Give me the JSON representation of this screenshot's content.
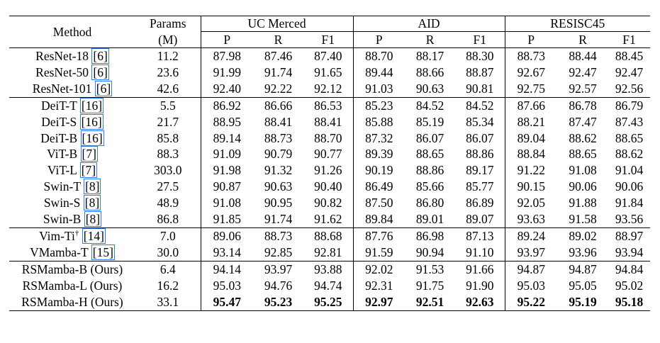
{
  "header": {
    "method": "Method",
    "params": "Params",
    "params_unit": "(M)",
    "datasets": [
      "UC Merced",
      "AID",
      "RESISC45"
    ],
    "metrics": [
      "P",
      "R",
      "F1"
    ]
  },
  "groups": [
    {
      "rows": [
        {
          "name": "ResNet-18",
          "cite": "6",
          "params": "11.2",
          "values": [
            "87.98",
            "87.46",
            "87.40",
            "88.70",
            "88.17",
            "88.30",
            "88.73",
            "88.44",
            "88.45"
          ]
        },
        {
          "name": "ResNet-50",
          "cite": "6",
          "params": "23.6",
          "values": [
            "91.99",
            "91.74",
            "91.65",
            "89.44",
            "88.66",
            "88.87",
            "92.67",
            "92.47",
            "92.47"
          ]
        },
        {
          "name": "ResNet-101",
          "cite": "6",
          "params": "42.6",
          "values": [
            "92.40",
            "92.22",
            "92.12",
            "91.03",
            "90.63",
            "90.81",
            "92.75",
            "92.57",
            "92.56"
          ]
        }
      ]
    },
    {
      "rows": [
        {
          "name": "DeiT-T",
          "cite": "16",
          "params": "5.5",
          "values": [
            "86.92",
            "86.66",
            "86.53",
            "85.23",
            "84.52",
            "84.52",
            "87.66",
            "86.78",
            "86.79"
          ]
        },
        {
          "name": "DeiT-S",
          "cite": "16",
          "params": "21.7",
          "values": [
            "88.95",
            "88.41",
            "88.41",
            "85.88",
            "85.19",
            "85.34",
            "88.21",
            "87.47",
            "87.43"
          ]
        },
        {
          "name": "DeiT-B",
          "cite": "16",
          "params": "85.8",
          "values": [
            "89.14",
            "88.73",
            "88.70",
            "87.32",
            "86.07",
            "86.07",
            "89.04",
            "88.62",
            "88.65"
          ]
        },
        {
          "name": "ViT-B",
          "cite": "7",
          "params": "88.3",
          "values": [
            "91.09",
            "90.79",
            "90.77",
            "89.39",
            "88.65",
            "88.86",
            "88.84",
            "88.65",
            "88.62"
          ]
        },
        {
          "name": "ViT-L",
          "cite": "7",
          "params": "303.0",
          "values": [
            "91.98",
            "91.32",
            "91.26",
            "90.19",
            "88.86",
            "89.17",
            "91.22",
            "91.08",
            "91.04"
          ]
        },
        {
          "name": "Swin-T",
          "cite": "8",
          "params": "27.5",
          "values": [
            "90.87",
            "90.63",
            "90.40",
            "86.49",
            "85.66",
            "85.77",
            "90.15",
            "90.06",
            "90.06"
          ]
        },
        {
          "name": "Swin-S",
          "cite": "8",
          "params": "48.9",
          "values": [
            "91.08",
            "90.95",
            "90.82",
            "87.50",
            "86.80",
            "86.89",
            "92.05",
            "91.88",
            "91.84"
          ]
        },
        {
          "name": "Swin-B",
          "cite": "8",
          "params": "86.8",
          "values": [
            "91.85",
            "91.74",
            "91.62",
            "89.84",
            "89.01",
            "89.07",
            "93.63",
            "91.58",
            "93.56"
          ]
        }
      ]
    },
    {
      "rows": [
        {
          "name": "Vim-Ti",
          "sup": "†",
          "cite": "14",
          "params": "7.0",
          "values": [
            "89.06",
            "88.73",
            "88.68",
            "87.76",
            "86.98",
            "87.13",
            "89.24",
            "89.02",
            "88.97"
          ]
        },
        {
          "name": "VMamba-T",
          "cite": "15",
          "params": "30.0",
          "values": [
            "93.14",
            "92.85",
            "92.81",
            "91.59",
            "90.94",
            "91.10",
            "93.97",
            "93.96",
            "93.94"
          ]
        }
      ]
    },
    {
      "rows": [
        {
          "name": "RSMamba-B (Ours)",
          "params": "6.4",
          "values": [
            "94.14",
            "93.97",
            "93.88",
            "92.02",
            "91.53",
            "91.66",
            "94.87",
            "94.87",
            "94.84"
          ]
        },
        {
          "name": "RSMamba-L (Ours)",
          "params": "16.2",
          "values": [
            "95.03",
            "94.76",
            "94.74",
            "92.31",
            "91.75",
            "91.90",
            "95.03",
            "95.05",
            "95.02"
          ]
        },
        {
          "name": "RSMamba-H (Ours)",
          "params": "33.1",
          "bold": true,
          "values": [
            "95.47",
            "95.23",
            "95.25",
            "92.97",
            "92.51",
            "92.63",
            "95.22",
            "95.19",
            "95.18"
          ]
        }
      ]
    }
  ]
}
